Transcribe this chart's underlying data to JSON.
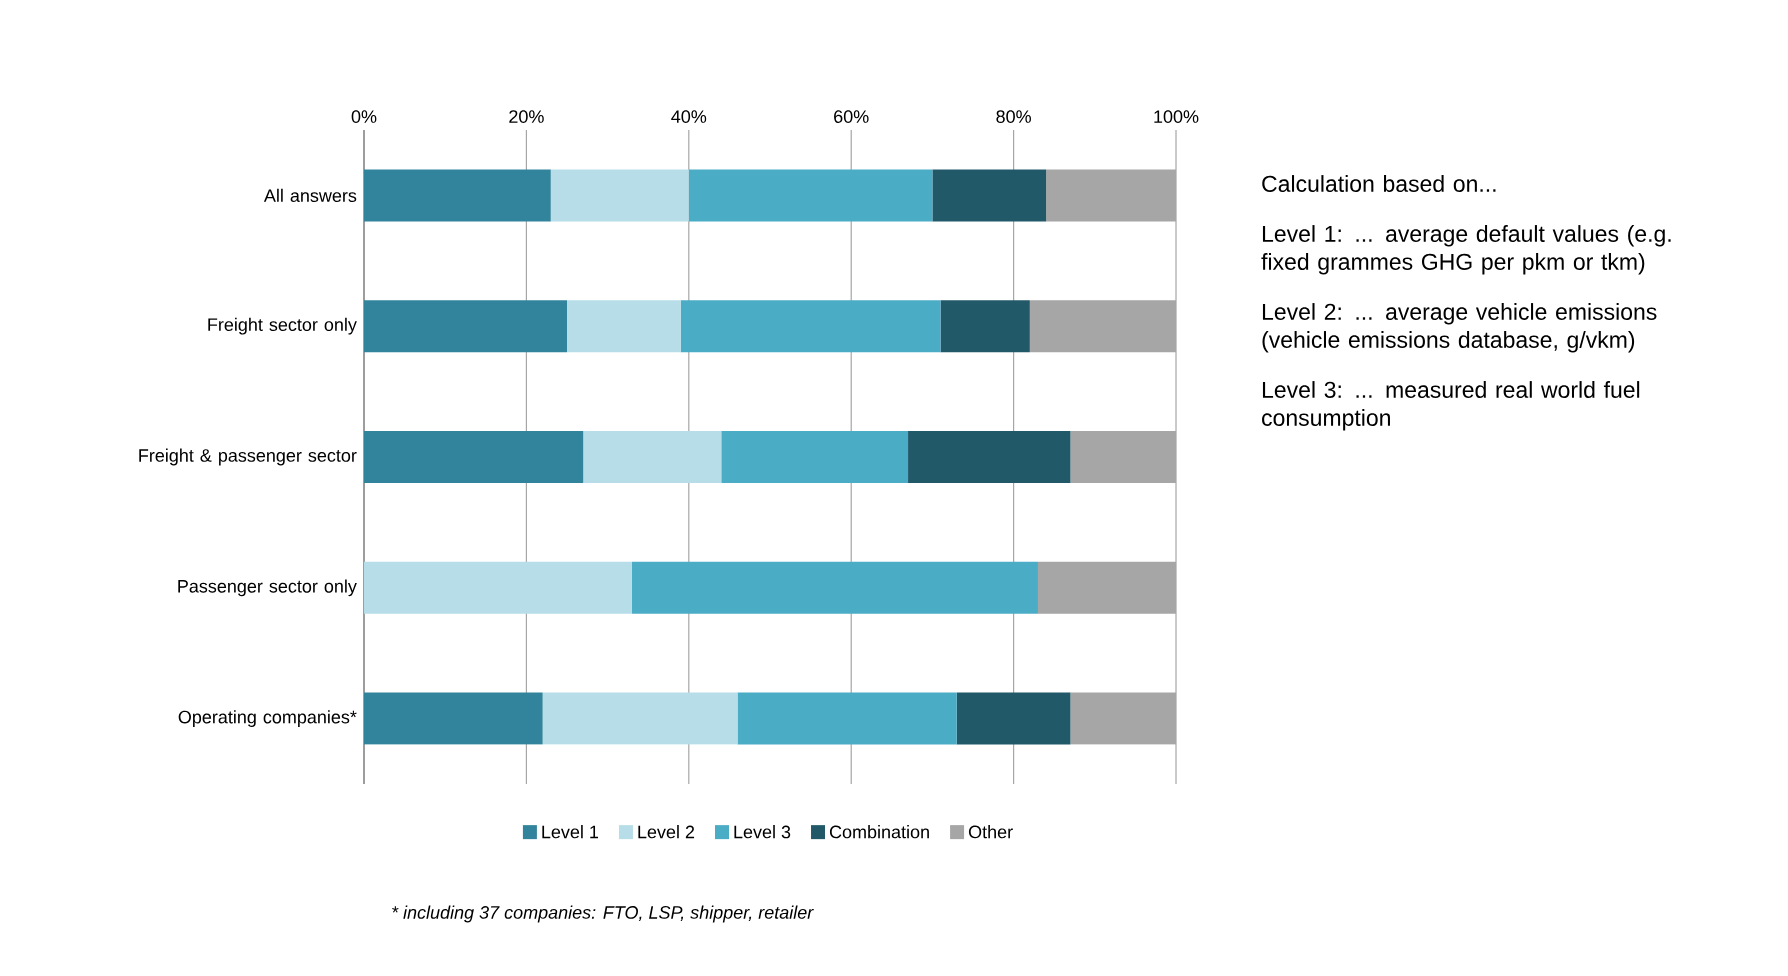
{
  "chart_data": {
    "type": "bar",
    "orientation": "horizontal",
    "stacked": true,
    "categories": [
      "All answers",
      "Freight sector only",
      "Freight & passenger sector",
      "Passenger sector only",
      "Operating companies*"
    ],
    "series": [
      {
        "name": "Level 1",
        "color": "#31849b",
        "values": [
          23,
          25,
          27,
          0,
          22
        ]
      },
      {
        "name": "Level 2",
        "color": "#b7dee8",
        "values": [
          17,
          14,
          17,
          33,
          24
        ]
      },
      {
        "name": "Level 3",
        "color": "#4bacc6",
        "values": [
          30,
          32,
          23,
          50,
          27
        ]
      },
      {
        "name": "Combination",
        "color": "#215968",
        "values": [
          14,
          11,
          20,
          0,
          14
        ]
      },
      {
        "name": "Other",
        "color": "#a6a6a6",
        "values": [
          16,
          18,
          13,
          17,
          13
        ]
      }
    ],
    "xlim": [
      0,
      100
    ],
    "xticks": [
      {
        "value": 0,
        "label": "0%"
      },
      {
        "value": 20,
        "label": "20%"
      },
      {
        "value": 40,
        "label": "40%"
      },
      {
        "value": 60,
        "label": "60%"
      },
      {
        "value": 80,
        "label": "80%"
      },
      {
        "value": 100,
        "label": "100%"
      }
    ],
    "grid": "x",
    "legend": "bottom",
    "annotations": [
      "Calculation based on...",
      "Level 1:  ... average default values (e.g. fixed grammes GHG per pkm or tkm)",
      "Level 2: ... average vehicle emissions (vehicle emissions database, g/vkm)",
      "Level 3: ... measured real world fuel consumption",
      "* including 37 companies: FTO, LSP, shipper, retailer"
    ]
  }
}
